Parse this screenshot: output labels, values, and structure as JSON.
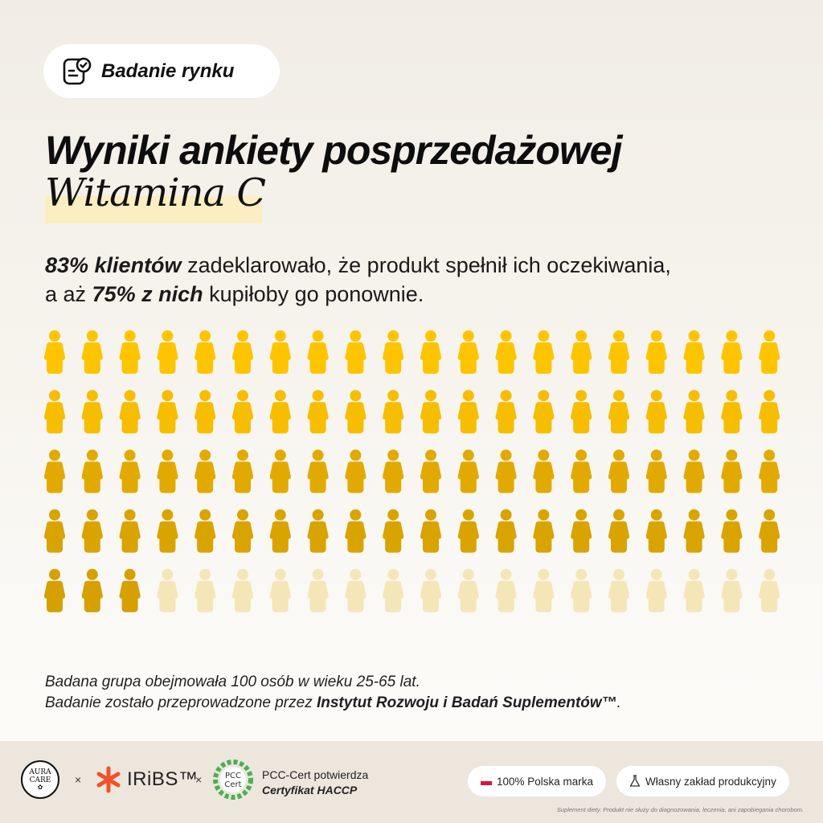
{
  "header": {
    "pill_label": "Badanie rynku",
    "pill_icon": "survey-document-check-icon"
  },
  "title": "Wyniki ankiety posprzedażowej",
  "subtitle": "Witamina C",
  "lead": {
    "p1_bold": "83% klientów",
    "p1_rest": " zadeklarowało, że produkt spełnił ich oczekiwania,",
    "p2_start": "a aż ",
    "p2_bold": "75% z nich",
    "p2_rest": " kupiłoby go ponownie."
  },
  "people_grid": {
    "total": 100,
    "rows": 5,
    "columns": 20,
    "satisfied": 83,
    "would_rebuy": 75,
    "colors": {
      "rebuy": "#ffc700",
      "satisfied_only": "#dda800",
      "inactive": "#f5e6b8"
    },
    "icon": "person-icon"
  },
  "note": {
    "line1": "Badana grupa obejmowała 100 osób w wieku 25-65 lat.",
    "line2_start": "Badanie zostało przeprowadzone przez ",
    "line2_bold": "Instytut Rozwoju i Badań Suplementów™",
    "line2_end": "."
  },
  "footer": {
    "aura_line1": "AURA",
    "aura_line2": "CARE",
    "times": "×",
    "iribs": "IRiBS™",
    "pcc_line1": "PCC-Cert potwierdza",
    "pcc_line2": "Certyfikat HACCP",
    "badge_polish": "100% Polska marka",
    "badge_factory": "Własny zakład produkcyjny",
    "disclaimer": "Suplement diety. Produkt nie służy do diagnozowania, leczenia, ani zapobiegania chorobom."
  }
}
